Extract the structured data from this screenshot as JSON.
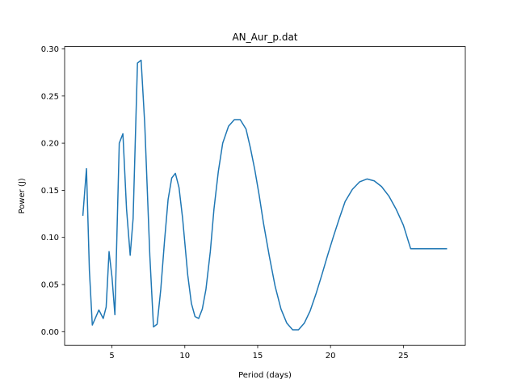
{
  "chart_data": {
    "type": "line",
    "title": "AN_Aur_p.dat",
    "xlabel": "Period (days)",
    "ylabel": "Power (J)",
    "xlim": [
      1.75,
      29.25
    ],
    "ylim": [
      -0.0145,
      0.3025
    ],
    "xticks": [
      5,
      10,
      15,
      20,
      25
    ],
    "yticks": [
      0.0,
      0.05,
      0.1,
      0.15,
      0.2,
      0.25,
      0.3
    ],
    "xtick_labels": [
      "5",
      "10",
      "15",
      "20",
      "25"
    ],
    "ytick_labels": [
      "0.00",
      "0.05",
      "0.10",
      "0.15",
      "0.20",
      "0.25",
      "0.30"
    ],
    "grid": false,
    "line_color": "#1f77b4",
    "series": [
      {
        "x": [
          3.0,
          3.25,
          3.45,
          3.65,
          3.85,
          4.1,
          4.4,
          4.6,
          4.8,
          5.0,
          5.2,
          5.5,
          5.75,
          6.0,
          6.25,
          6.45,
          6.75,
          7.0,
          7.25,
          7.6,
          7.85,
          8.1,
          8.35,
          8.6,
          8.85,
          9.1,
          9.35,
          9.6,
          9.85,
          10.2,
          10.45,
          10.7,
          10.95,
          11.2,
          11.45,
          11.75,
          12.0,
          12.3,
          12.6,
          13.0,
          13.4,
          13.8,
          14.2,
          14.5,
          14.8,
          15.1,
          15.4,
          15.8,
          16.2,
          16.6,
          17.0,
          17.4,
          17.8,
          18.2,
          18.6,
          19.0,
          19.4,
          19.8,
          20.2,
          20.6,
          21.0,
          21.5,
          22.0,
          22.5,
          23.0,
          23.5,
          24.0,
          24.5,
          25.0,
          25.5,
          26.0,
          26.5,
          27.0,
          27.5,
          28.0
        ],
        "y": [
          0.123,
          0.173,
          0.065,
          0.007,
          0.014,
          0.023,
          0.014,
          0.026,
          0.085,
          0.058,
          0.018,
          0.2,
          0.21,
          0.13,
          0.081,
          0.12,
          0.285,
          0.288,
          0.22,
          0.08,
          0.005,
          0.008,
          0.045,
          0.095,
          0.14,
          0.163,
          0.168,
          0.153,
          0.12,
          0.06,
          0.03,
          0.016,
          0.014,
          0.024,
          0.045,
          0.085,
          0.13,
          0.17,
          0.2,
          0.218,
          0.225,
          0.225,
          0.215,
          0.195,
          0.172,
          0.145,
          0.115,
          0.08,
          0.048,
          0.024,
          0.009,
          0.002,
          0.002,
          0.009,
          0.022,
          0.04,
          0.06,
          0.081,
          0.101,
          0.12,
          0.138,
          0.151,
          0.159,
          0.162,
          0.16,
          0.154,
          0.144,
          0.13,
          0.113,
          0.088,
          0.088,
          0.088,
          0.088,
          0.088,
          0.088
        ]
      }
    ]
  }
}
